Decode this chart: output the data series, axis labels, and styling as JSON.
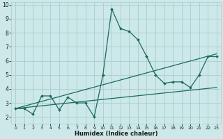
{
  "xlabel": "Humidex (Indice chaleur)",
  "xlim": [
    -0.5,
    23.5
  ],
  "ylim": [
    1.5,
    10.2
  ],
  "xticks": [
    0,
    1,
    2,
    3,
    4,
    5,
    6,
    7,
    8,
    9,
    10,
    11,
    12,
    13,
    14,
    15,
    16,
    17,
    18,
    19,
    20,
    21,
    22,
    23
  ],
  "yticks": [
    2,
    3,
    4,
    5,
    6,
    7,
    8,
    9,
    10
  ],
  "bg_color": "#cce8e8",
  "grid_color": "#aacccc",
  "line_color": "#1a6b5a",
  "series1_x": [
    0,
    1,
    2,
    3,
    4,
    5,
    6,
    7,
    8,
    9,
    10,
    11,
    12,
    13,
    14,
    15,
    16,
    17,
    18,
    19,
    20,
    21,
    22,
    23
  ],
  "series1_y": [
    2.6,
    2.6,
    2.2,
    3.5,
    3.5,
    2.5,
    3.4,
    3.0,
    3.0,
    2.0,
    5.0,
    9.7,
    8.3,
    8.1,
    7.5,
    6.3,
    5.0,
    4.4,
    4.5,
    4.5,
    4.1,
    5.0,
    6.3,
    6.3
  ],
  "series2_x": [
    0,
    23
  ],
  "series2_y": [
    2.6,
    6.5
  ],
  "series3_x": [
    0,
    23
  ],
  "series3_y": [
    2.6,
    4.1
  ]
}
